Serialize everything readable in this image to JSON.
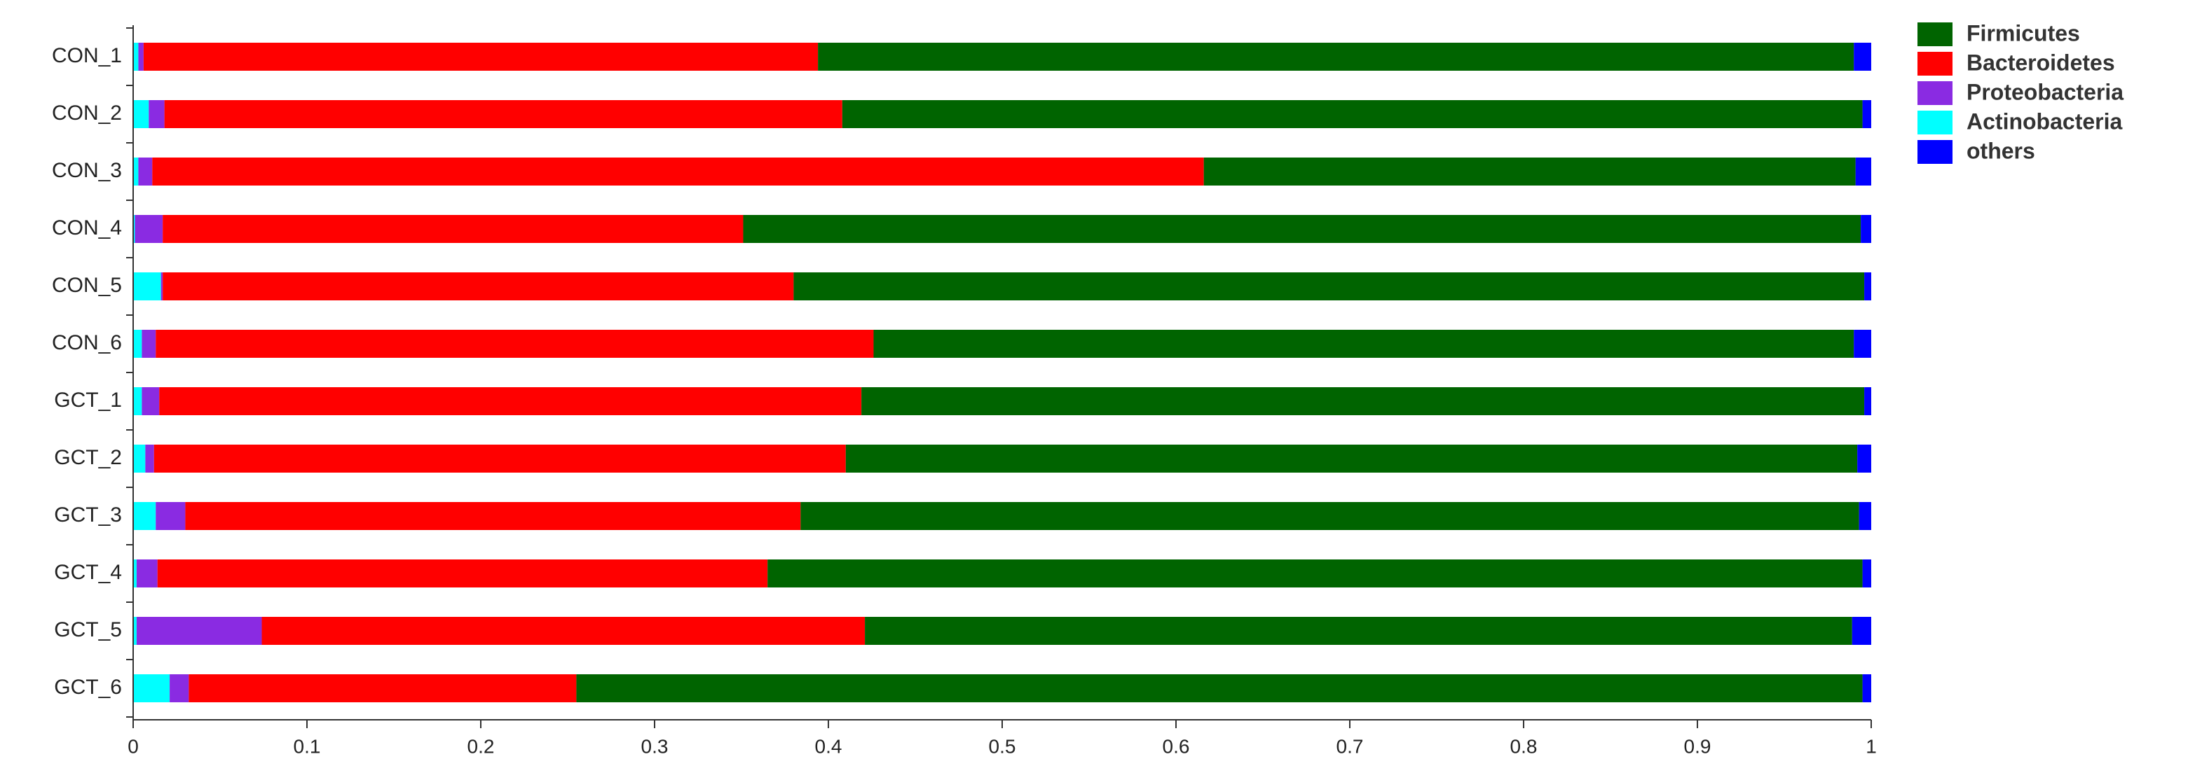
{
  "chart_data": {
    "type": "stacked-barh",
    "categories": [
      "CON_1",
      "CON_2",
      "CON_3",
      "CON_4",
      "CON_5",
      "CON_6",
      "GCT_1",
      "GCT_2",
      "GCT_3",
      "GCT_4",
      "GCT_5",
      "GCT_6"
    ],
    "series": [
      {
        "name": "Firmicutes",
        "color": "#006400",
        "values": [
          0.596,
          0.587,
          0.375,
          0.643,
          0.616,
          0.564,
          0.577,
          0.582,
          0.609,
          0.63,
          0.568,
          0.74
        ]
      },
      {
        "name": "Bacteroidetes",
        "color": "#ff0000",
        "values": [
          0.388,
          0.39,
          0.605,
          0.334,
          0.363,
          0.413,
          0.404,
          0.398,
          0.354,
          0.351,
          0.347,
          0.223
        ]
      },
      {
        "name": "Proteobacteria",
        "color": "#8a2be2",
        "values": [
          0.003,
          0.009,
          0.008,
          0.016,
          0.001,
          0.008,
          0.01,
          0.005,
          0.017,
          0.012,
          0.072,
          0.011
        ]
      },
      {
        "name": "Actinobacteria",
        "color": "#00ffff",
        "values": [
          0.003,
          0.009,
          0.003,
          0.001,
          0.016,
          0.005,
          0.005,
          0.007,
          0.013,
          0.002,
          0.002,
          0.021
        ]
      },
      {
        "name": "others",
        "color": "#0000ff",
        "values": [
          0.01,
          0.005,
          0.009,
          0.006,
          0.004,
          0.01,
          0.004,
          0.008,
          0.007,
          0.005,
          0.011,
          0.005
        ]
      }
    ],
    "xlim": [
      0,
      1
    ],
    "xticks": [
      0,
      0.1,
      0.2,
      0.3,
      0.4,
      0.5,
      0.6,
      0.7,
      0.8,
      0.9,
      1
    ],
    "legend": "top-right"
  }
}
